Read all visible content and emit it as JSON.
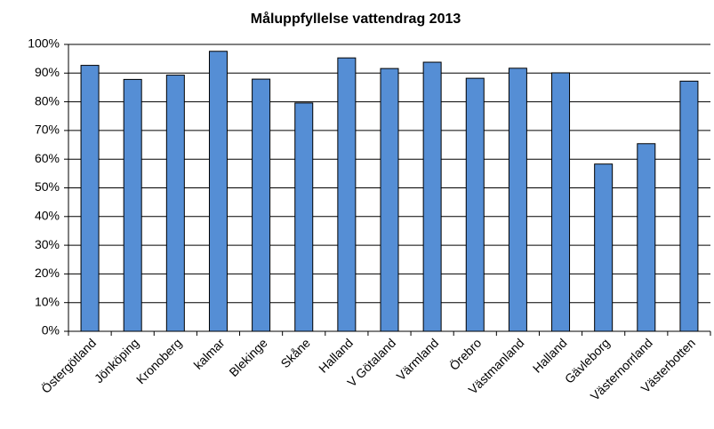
{
  "chart_data": {
    "type": "bar",
    "title": "Måluppfyllelse vattendrag 2013",
    "categories": [
      "Östergötland",
      "Jönköping",
      "Kronoberg",
      "kalmar",
      "Blekinge",
      "Skåne",
      "Halland",
      "V Götaland",
      "Värmland",
      "Örebro",
      "Västmanland",
      "Halland",
      "Gävleborg",
      "Västernorrland",
      "Västerbotten"
    ],
    "values": [
      92.7,
      87.8,
      89.3,
      97.6,
      87.9,
      79.6,
      95.3,
      91.6,
      93.8,
      88.2,
      91.7,
      90.1,
      58.3,
      65.4,
      87.2
    ],
    "color": "#558ed5",
    "ylim": [
      0,
      100
    ],
    "yticks": [
      {
        "value": 0,
        "label": "0%"
      },
      {
        "value": 10,
        "label": "10%"
      },
      {
        "value": 20,
        "label": "20%"
      },
      {
        "value": 30,
        "label": "30%"
      },
      {
        "value": 40,
        "label": "40%"
      },
      {
        "value": 50,
        "label": "50%"
      },
      {
        "value": 60,
        "label": "60%"
      },
      {
        "value": 70,
        "label": "70%"
      },
      {
        "value": 80,
        "label": "80%"
      },
      {
        "value": 90,
        "label": "90%"
      },
      {
        "value": 100,
        "label": "100%"
      }
    ],
    "grid": true
  }
}
